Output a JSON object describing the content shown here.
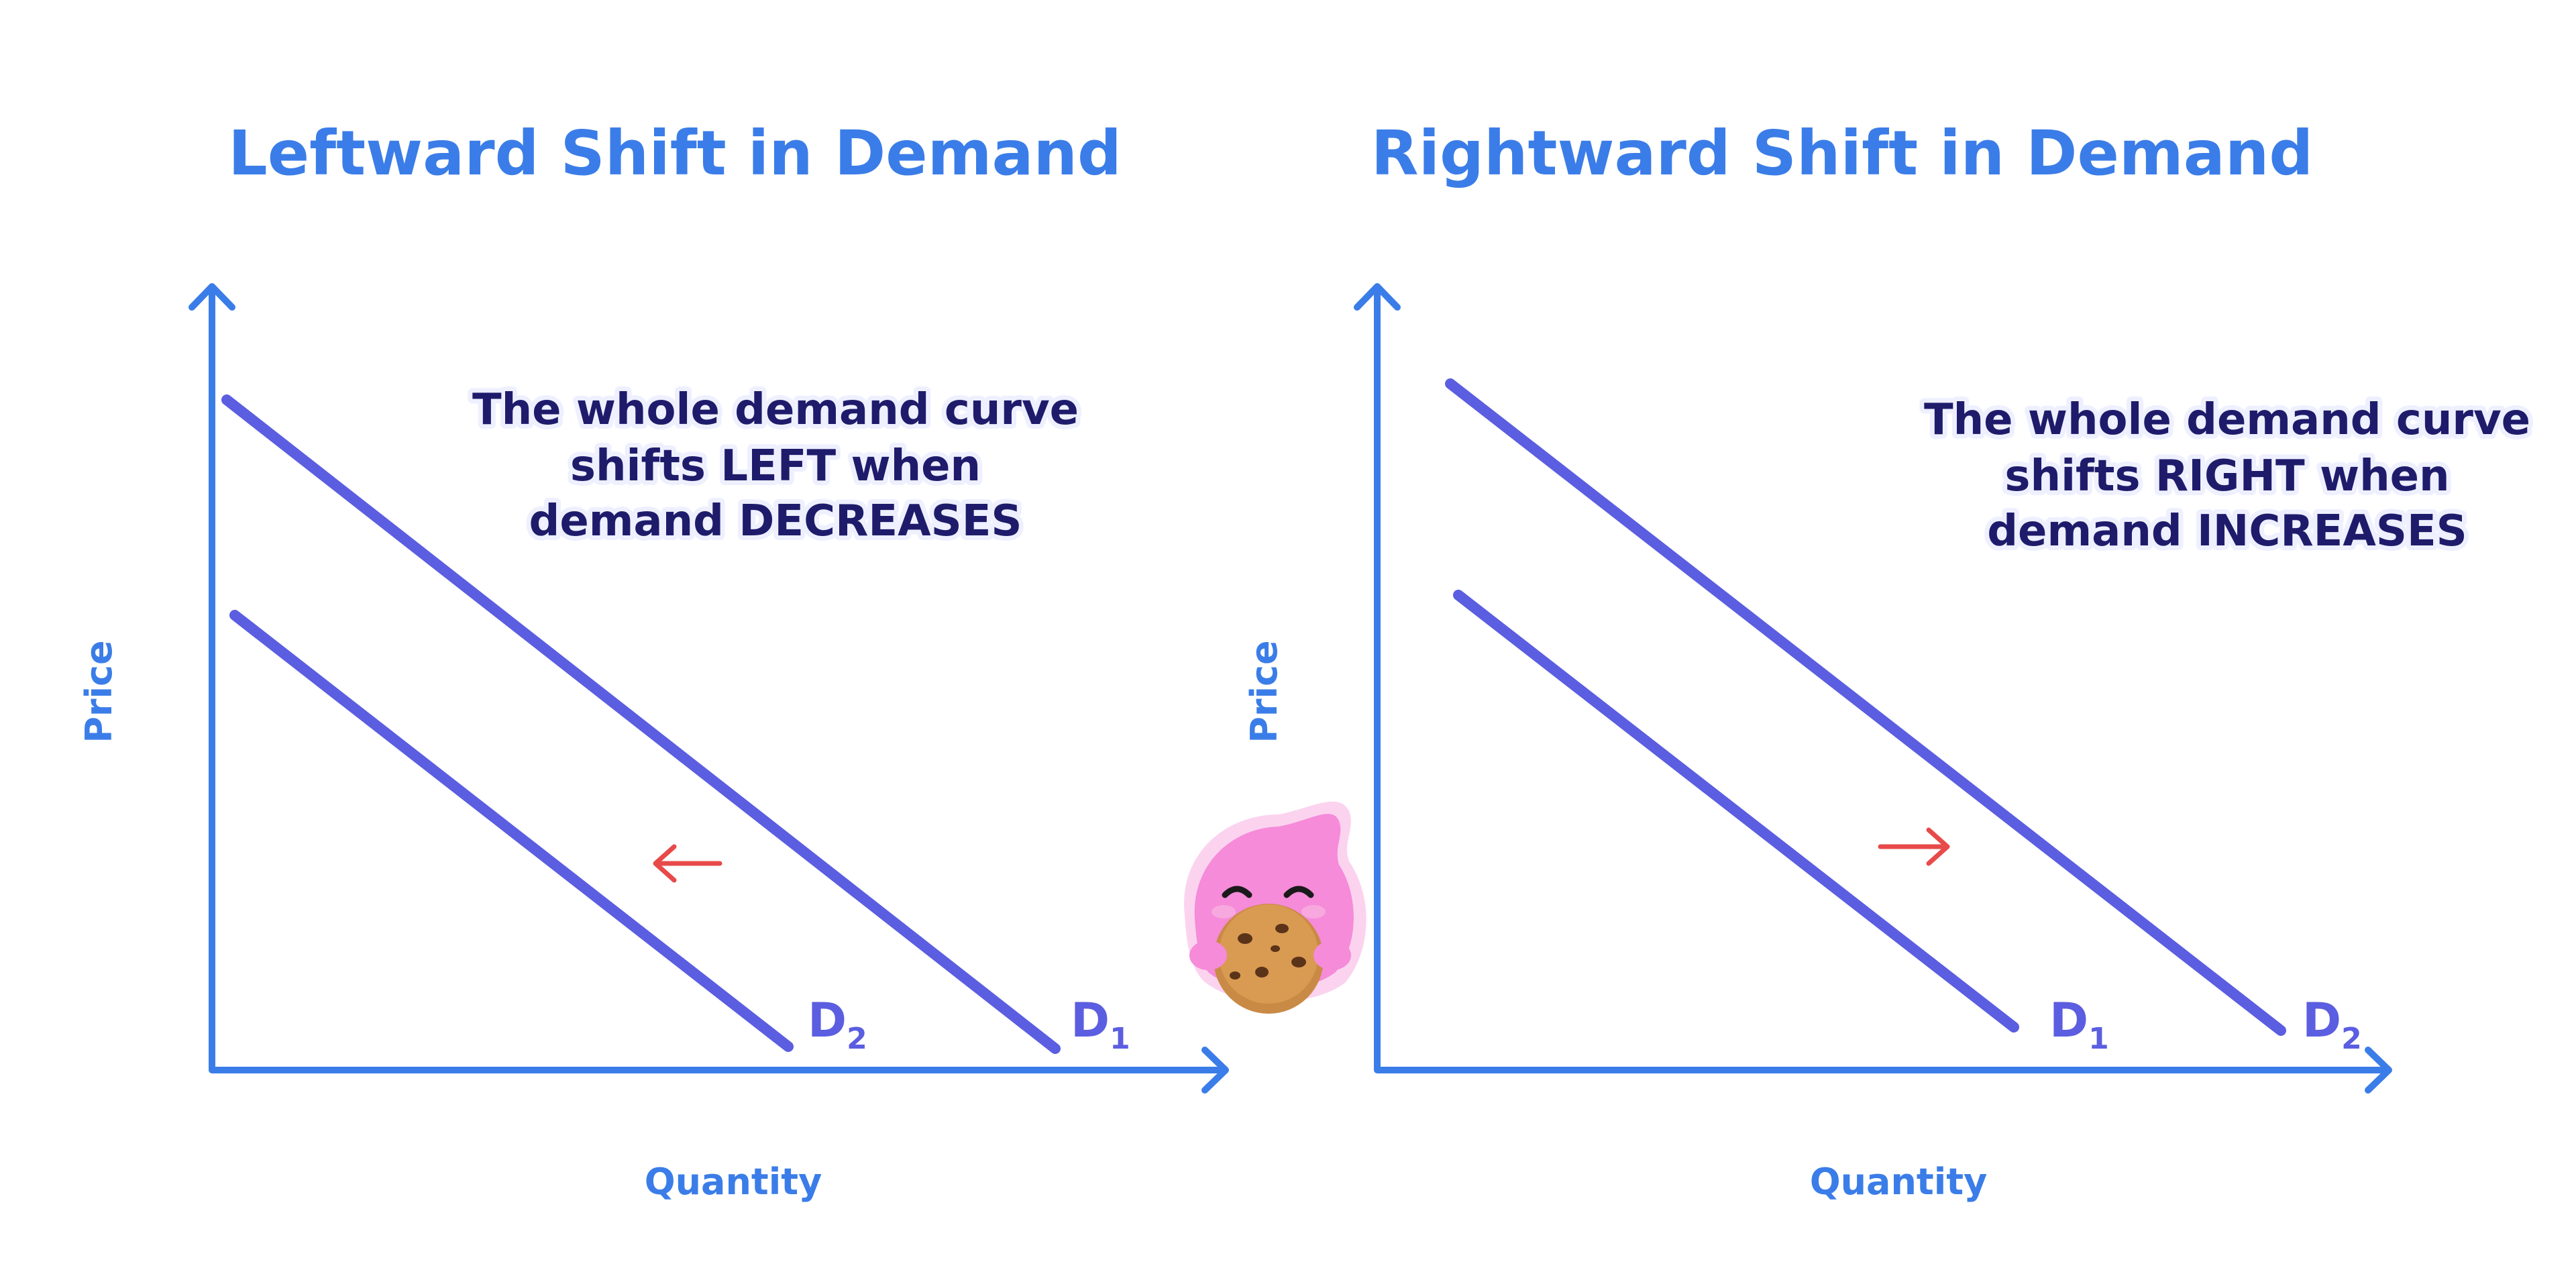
{
  "panels": [
    {
      "title": "Leftward Shift in Demand",
      "note": [
        "The whole demand curve",
        "shifts LEFT when",
        "demand DECREASES"
      ],
      "y_axis_label": "Price",
      "x_axis_label": "Quantity",
      "curve_labels": [
        {
          "letter": "D",
          "subscript": "2"
        },
        {
          "letter": "D",
          "subscript": "1"
        }
      ]
    },
    {
      "title": "Rightward Shift in Demand",
      "note": [
        "The whole demand curve",
        "shifts RIGHT when",
        "demand INCREASES"
      ],
      "y_axis_label": "Price",
      "x_axis_label": "Quantity",
      "curve_labels": [
        {
          "letter": "D",
          "subscript": "1"
        },
        {
          "letter": "D",
          "subscript": "2"
        }
      ]
    }
  ]
}
